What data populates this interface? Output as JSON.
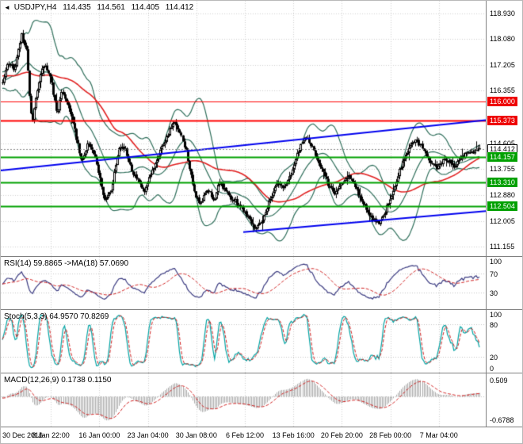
{
  "header": {
    "marker": "◄",
    "symbol_period": "USDJPY,H4",
    "open": "114.435",
    "high": "114.561",
    "low": "114.405",
    "close": "114.412"
  },
  "colors": {
    "background": "#ffffff",
    "grid": "#cfcfcf",
    "candle": "#000000",
    "bull_fill": "#ffffff",
    "bear_fill": "#000000",
    "bollinger": "#2e6e5a",
    "ma_red": "#e02020",
    "level_red": "#ff0000",
    "level_green": "#00a000",
    "trendline_blue": "#0000ee",
    "rsi_line": "#3a3a80",
    "signal_red": "#d02020",
    "stoch_line": "#00a3a3",
    "macd_hist": "#a8a8a8",
    "separator": "#808080"
  },
  "price_axis": {
    "labels": [
      {
        "text": "118.930",
        "price": 118.93,
        "style": "plain"
      },
      {
        "text": "118.080",
        "price": 118.08,
        "style": "plain"
      },
      {
        "text": "117.205",
        "price": 117.205,
        "style": "plain"
      },
      {
        "text": "116.355",
        "price": 116.355,
        "style": "plain"
      },
      {
        "text": "116.000",
        "price": 116.0,
        "style": "red-badge"
      },
      {
        "text": "115.373",
        "price": 115.373,
        "style": "red-badge"
      },
      {
        "text": "114.605",
        "price": 114.605,
        "style": "plain"
      },
      {
        "text": "114.412",
        "price": 114.412,
        "style": "current-badge"
      },
      {
        "text": "114.157",
        "price": 114.157,
        "style": "green-badge"
      },
      {
        "text": "113.755",
        "price": 113.755,
        "style": "plain"
      },
      {
        "text": "113.310",
        "price": 113.31,
        "style": "green-badge"
      },
      {
        "text": "112.880",
        "price": 112.88,
        "style": "plain"
      },
      {
        "text": "112.504",
        "price": 112.504,
        "style": "green-badge"
      },
      {
        "text": "112.005",
        "price": 112.005,
        "style": "plain"
      },
      {
        "text": "111.155",
        "price": 111.155,
        "style": "plain"
      }
    ]
  },
  "time_axis": {
    "labels": [
      "30 Dec 2016",
      "8 Jan 22:00",
      "16 Jan 00:00",
      "23 Jan 04:00",
      "30 Jan 08:00",
      "6 Feb 12:00",
      "13 Feb 16:00",
      "20 Feb 20:00",
      "28 Feb 00:00",
      "7 Mar 04:00"
    ]
  },
  "panes": {
    "rsi": {
      "label": "RSI(14) 59.8865 ->MA(18) 57.0690",
      "period": 14,
      "ma_period": 18,
      "value": 59.8865,
      "ma_value": 57.069,
      "axis_labels": [
        "100",
        "70",
        "30"
      ],
      "level_lines": [
        70,
        30
      ]
    },
    "stoch": {
      "label": "Stoch(5,3,3) 64.9570 70.8269",
      "k_period": 5,
      "d_period": 3,
      "slowing": 3,
      "value": 64.957,
      "signal_value": 70.8269,
      "axis_labels": [
        "100",
        "80",
        "20",
        "0"
      ],
      "level_lines": [
        80,
        20
      ]
    },
    "macd": {
      "label": "MACD(12,26,9) 0.1738 0.1150",
      "fast": 12,
      "slow": 26,
      "signal_period": 9,
      "value": 0.1738,
      "signal_value": 0.115,
      "axis_labels": [
        "0.509",
        "-0.6788"
      ],
      "scale": [
        -0.8,
        0.6
      ]
    }
  },
  "chart_data": {
    "type": "candlestick",
    "symbol": "USDJPY",
    "timeframe": "H4",
    "title": "USDJPY,H4",
    "current_ohlc": {
      "open": 114.435,
      "high": 114.561,
      "low": 114.405,
      "close": 114.412
    },
    "y_range": [
      110.85,
      119.35
    ],
    "num_candles": 300,
    "seed": 7,
    "noise": 0.085,
    "wick": 0.12,
    "price_path_anchors": [
      [
        0.0,
        116.6
      ],
      [
        0.012,
        117.35
      ],
      [
        0.025,
        117.05
      ],
      [
        0.04,
        118.2
      ],
      [
        0.05,
        117.7
      ],
      [
        0.062,
        115.15
      ],
      [
        0.075,
        116.6
      ],
      [
        0.088,
        117.25
      ],
      [
        0.102,
        116.7
      ],
      [
        0.115,
        115.6
      ],
      [
        0.125,
        116.35
      ],
      [
        0.14,
        115.75
      ],
      [
        0.152,
        114.9
      ],
      [
        0.165,
        113.95
      ],
      [
        0.178,
        114.65
      ],
      [
        0.19,
        114.25
      ],
      [
        0.203,
        113.55
      ],
      [
        0.215,
        112.65
      ],
      [
        0.228,
        113.1
      ],
      [
        0.245,
        114.6
      ],
      [
        0.258,
        114.35
      ],
      [
        0.272,
        113.7
      ],
      [
        0.285,
        113.3
      ],
      [
        0.298,
        112.95
      ],
      [
        0.312,
        113.6
      ],
      [
        0.33,
        114.35
      ],
      [
        0.345,
        114.85
      ],
      [
        0.36,
        115.3
      ],
      [
        0.372,
        114.9
      ],
      [
        0.385,
        114.35
      ],
      [
        0.4,
        113.0
      ],
      [
        0.415,
        112.55
      ],
      [
        0.428,
        113.1
      ],
      [
        0.442,
        112.7
      ],
      [
        0.455,
        113.3
      ],
      [
        0.468,
        113.0
      ],
      [
        0.48,
        112.75
      ],
      [
        0.495,
        112.6
      ],
      [
        0.51,
        112.3
      ],
      [
        0.53,
        111.8
      ],
      [
        0.545,
        112.05
      ],
      [
        0.56,
        112.7
      ],
      [
        0.575,
        113.3
      ],
      [
        0.59,
        113.1
      ],
      [
        0.605,
        113.6
      ],
      [
        0.62,
        114.3
      ],
      [
        0.635,
        114.85
      ],
      [
        0.65,
        114.4
      ],
      [
        0.665,
        113.9
      ],
      [
        0.68,
        113.3
      ],
      [
        0.695,
        112.95
      ],
      [
        0.712,
        113.35
      ],
      [
        0.725,
        113.6
      ],
      [
        0.74,
        113.1
      ],
      [
        0.755,
        112.65
      ],
      [
        0.77,
        112.15
      ],
      [
        0.79,
        111.95
      ],
      [
        0.815,
        112.8
      ],
      [
        0.83,
        113.6
      ],
      [
        0.848,
        114.3
      ],
      [
        0.865,
        114.75
      ],
      [
        0.88,
        114.45
      ],
      [
        0.895,
        114.0
      ],
      [
        0.91,
        113.8
      ],
      [
        0.93,
        114.1
      ],
      [
        0.945,
        113.85
      ],
      [
        0.96,
        114.15
      ],
      [
        0.978,
        114.3
      ],
      [
        1.0,
        114.41
      ]
    ],
    "horizontal_lines": [
      {
        "price": 116.0,
        "color": "#ff0000",
        "width": 1,
        "label": "116.000"
      },
      {
        "price": 115.373,
        "color": "#ff0000",
        "width": 2,
        "label": "115.373"
      },
      {
        "price": 114.157,
        "color": "#00a000",
        "width": 2,
        "label": "114.157"
      },
      {
        "price": 113.31,
        "color": "#00a000",
        "width": 2,
        "label": "113.310"
      },
      {
        "price": 112.504,
        "color": "#00a000",
        "width": 2,
        "label": "112.504"
      }
    ],
    "trendlines": [
      {
        "x1": 0.0,
        "price1": 113.7,
        "x2": 1.0,
        "price2": 115.38,
        "color": "#0000ee",
        "width": 2
      },
      {
        "x1": 0.5,
        "price1": 111.65,
        "x2": 1.0,
        "price2": 112.35,
        "color": "#0000ee",
        "width": 2
      }
    ],
    "current_price_line": 114.412,
    "bollinger": {
      "period": 20,
      "deviation": 2
    },
    "moving_average": {
      "period": 55,
      "type": "sma"
    }
  }
}
